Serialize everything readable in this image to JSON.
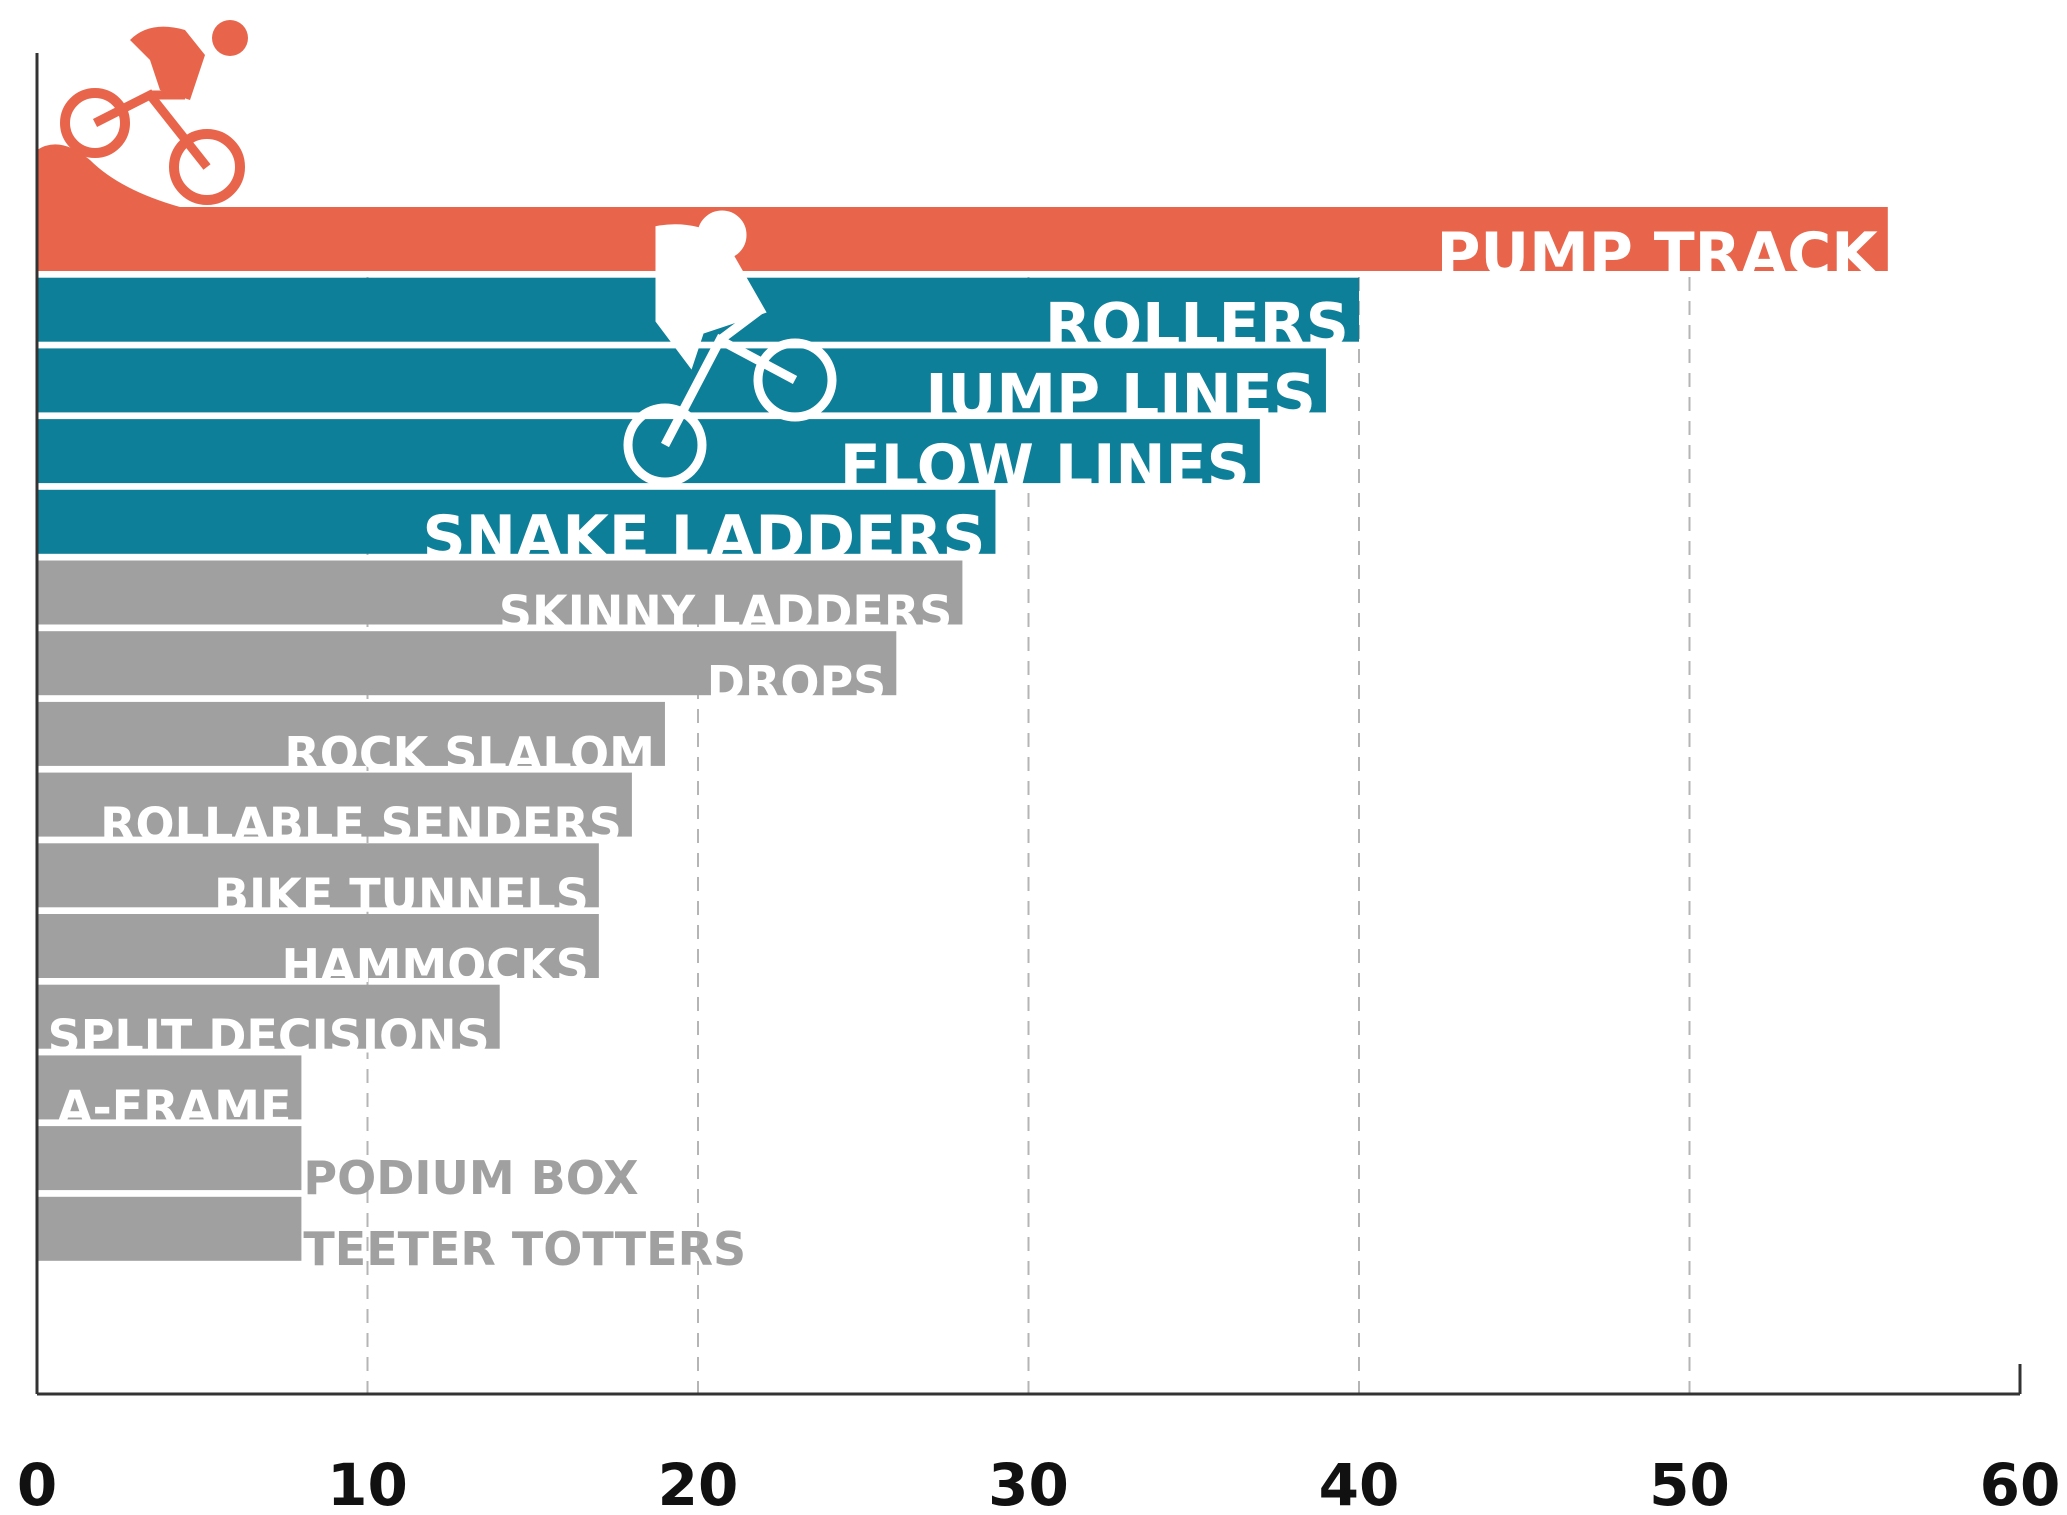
{
  "chart_data": {
    "type": "bar",
    "orientation": "horizontal",
    "categories": [
      "PUMP TRACK",
      "ROLLERS",
      "JUMP LINES",
      "FLOW LINES",
      "SNAKE LADDERS",
      "SKINNY LADDERS",
      "DROPS",
      "ROCK SLALOM",
      "ROLLABLE SENDERS",
      "BIKE TUNNELS",
      "HAMMOCKS",
      "SPLIT DECISIONS",
      "A-FRAME",
      "PODIUM BOX",
      "TEETER TOTTERS"
    ],
    "values": [
      56,
      40,
      39,
      37,
      29,
      28,
      26,
      19,
      18,
      17,
      17,
      14,
      8,
      8,
      8
    ],
    "colors": [
      "#e8654b",
      "#0e7f99",
      "#0e7f99",
      "#0e7f99",
      "#0e7f99",
      "#a0a0a0",
      "#a0a0a0",
      "#a0a0a0",
      "#a0a0a0",
      "#a0a0a0",
      "#a0a0a0",
      "#a0a0a0",
      "#a0a0a0",
      "#a0a0a0",
      "#a0a0a0"
    ],
    "xlim": [
      0,
      60
    ],
    "xticks": [
      0,
      10,
      20,
      30,
      40,
      50,
      60
    ],
    "grid": true
  }
}
